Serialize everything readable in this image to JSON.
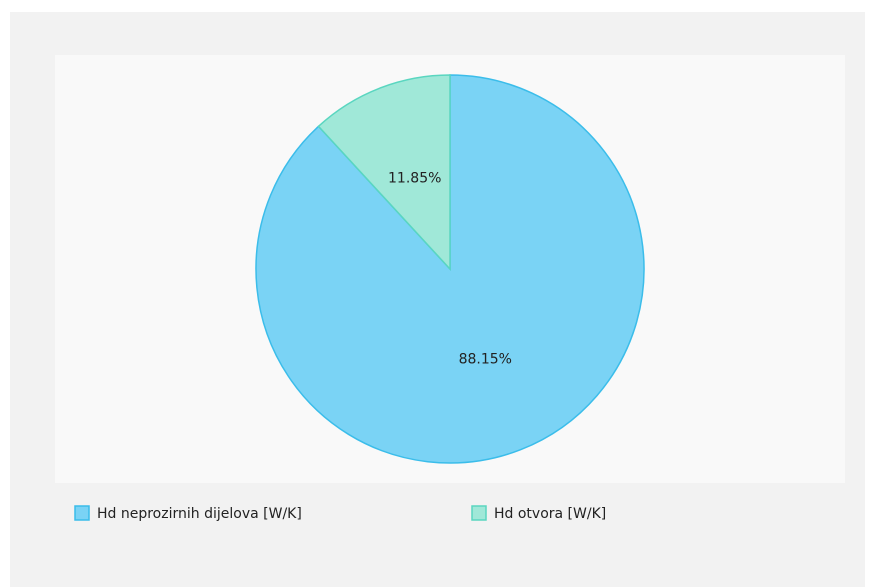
{
  "chart_data": {
    "type": "pie",
    "categories": [
      "Hd neprozirnih dijelova [W/K]",
      "Hd otvora [W/K]"
    ],
    "values": [
      88.15,
      11.85
    ],
    "value_labels": [
      "88.15%",
      "11.85%"
    ],
    "colors": [
      "#7ad3f5",
      "#a0e8d8"
    ],
    "stroke_colors": [
      "#3bbdea",
      "#5ad6c0"
    ],
    "legend": "bottom"
  }
}
